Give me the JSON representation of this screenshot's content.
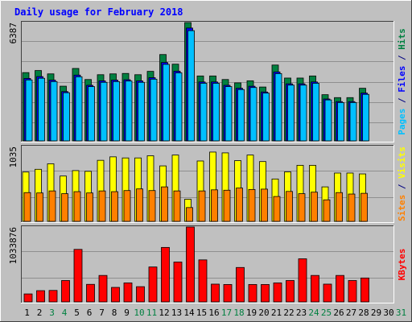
{
  "chart_data": [
    {
      "type": "bar",
      "panel": "hits-files-pages",
      "title": "Daily usage for February 2018",
      "ylabel_max": "6387",
      "right_label_parts": [
        {
          "text": "Pages",
          "color": "#00c0ff"
        },
        {
          "text": " / ",
          "color": "#000080"
        },
        {
          "text": "Files",
          "color": "#0000ff"
        },
        {
          "text": " / ",
          "color": "#000080"
        },
        {
          "text": "Hits",
          "color": "#008040"
        }
      ],
      "categories": [
        "1",
        "2",
        "3",
        "4",
        "5",
        "6",
        "7",
        "8",
        "9",
        "10",
        "11",
        "12",
        "13",
        "14",
        "15",
        "16",
        "17",
        "18",
        "19",
        "20",
        "21",
        "22",
        "23",
        "24",
        "25",
        "26",
        "27",
        "28",
        "29",
        "30",
        "31"
      ],
      "ylim": [
        0,
        6387
      ],
      "series": [
        {
          "name": "Hits",
          "color": "#008040",
          "values": [
            3685,
            3797,
            3617,
            2952,
            3909,
            3312,
            3572,
            3617,
            3640,
            3572,
            3753,
            4660,
            4140,
            6387,
            3504,
            3504,
            3312,
            3131,
            3244,
            2907,
            4094,
            3391,
            3391,
            3504,
            2493,
            2335,
            2335,
            2840,
            null,
            null,
            null
          ]
        },
        {
          "name": "Files",
          "color": "#0000ff",
          "values": [
            3370,
            3470,
            3280,
            2660,
            3550,
            3000,
            3240,
            3280,
            3300,
            3240,
            3410,
            4230,
            3760,
            6090,
            3180,
            3180,
            3000,
            2840,
            2950,
            2640,
            3720,
            3080,
            3080,
            3180,
            2260,
            2120,
            2120,
            2580,
            null,
            null,
            null
          ]
        },
        {
          "name": "Pages",
          "color": "#00c0ff",
          "values": [
            3290,
            3380,
            3200,
            2600,
            3460,
            2930,
            3160,
            3200,
            3230,
            3160,
            3330,
            4130,
            3670,
            5950,
            3110,
            3110,
            2930,
            2770,
            2880,
            2580,
            3630,
            3010,
            3010,
            3110,
            2210,
            2070,
            2070,
            2510,
            null,
            null,
            null
          ]
        }
      ]
    },
    {
      "type": "bar",
      "panel": "visits-sites",
      "ylabel_max": "1035",
      "right_label_parts": [
        {
          "text": "Sites",
          "color": "#ff8000"
        },
        {
          "text": " / ",
          "color": "#000080"
        },
        {
          "text": "Visits",
          "color": "#ffff00"
        }
      ],
      "categories": [
        "1",
        "2",
        "3",
        "4",
        "5",
        "6",
        "7",
        "8",
        "9",
        "10",
        "11",
        "12",
        "13",
        "14",
        "15",
        "16",
        "17",
        "18",
        "19",
        "20",
        "21",
        "22",
        "23",
        "24",
        "25",
        "26",
        "27",
        "28",
        "29",
        "30",
        "31"
      ],
      "ylim": [
        0,
        1035
      ],
      "series": [
        {
          "name": "Visits",
          "color": "#ffff00",
          "values": [
            682,
            720,
            796,
            627,
            702,
            692,
            844,
            892,
            877,
            877,
            907,
            767,
            917,
            306,
            835,
            958,
            947,
            840,
            917,
            827,
            586,
            684,
            775,
            775,
            477,
            668,
            668,
            656,
            null,
            null,
            null
          ]
        },
        {
          "name": "Sites",
          "color": "#ff8000",
          "values": [
            398,
            393,
            421,
            383,
            411,
            393,
            421,
            411,
            426,
            449,
            426,
            477,
            421,
            191,
            421,
            436,
            431,
            461,
            441,
            446,
            344,
            414,
            383,
            404,
            298,
            398,
            378,
            388,
            null,
            null,
            null
          ]
        }
      ]
    },
    {
      "type": "bar",
      "panel": "kbytes",
      "ylabel_max": "1033876",
      "right_label_parts": [
        {
          "text": "KBytes",
          "color": "#ff0000"
        }
      ],
      "categories": [
        "1",
        "2",
        "3",
        "4",
        "5",
        "6",
        "7",
        "8",
        "9",
        "10",
        "11",
        "12",
        "13",
        "14",
        "15",
        "16",
        "17",
        "18",
        "19",
        "20",
        "21",
        "22",
        "23",
        "24",
        "25",
        "26",
        "27",
        "28",
        "29",
        "30",
        "31"
      ],
      "ylim": [
        0,
        1033876
      ],
      "series": [
        {
          "name": "KBytes",
          "color": "#ff0000",
          "values": [
            110000,
            155000,
            158000,
            295000,
            725000,
            242000,
            365000,
            200000,
            262000,
            210000,
            482000,
            752000,
            550000,
            1033876,
            580000,
            245000,
            240000,
            475000,
            240000,
            240000,
            262000,
            295000,
            595000,
            365000,
            245000,
            365000,
            295000,
            330000,
            null,
            null,
            null
          ]
        }
      ]
    }
  ],
  "weekend_days": [
    "3",
    "4",
    "10",
    "11",
    "17",
    "18",
    "24",
    "25",
    "31"
  ],
  "colors": {
    "background": "#c0c0c0",
    "title": "#0000ff",
    "day_label": "#000000",
    "weekend_label": "#008040",
    "grid": "#8f8f8f"
  }
}
